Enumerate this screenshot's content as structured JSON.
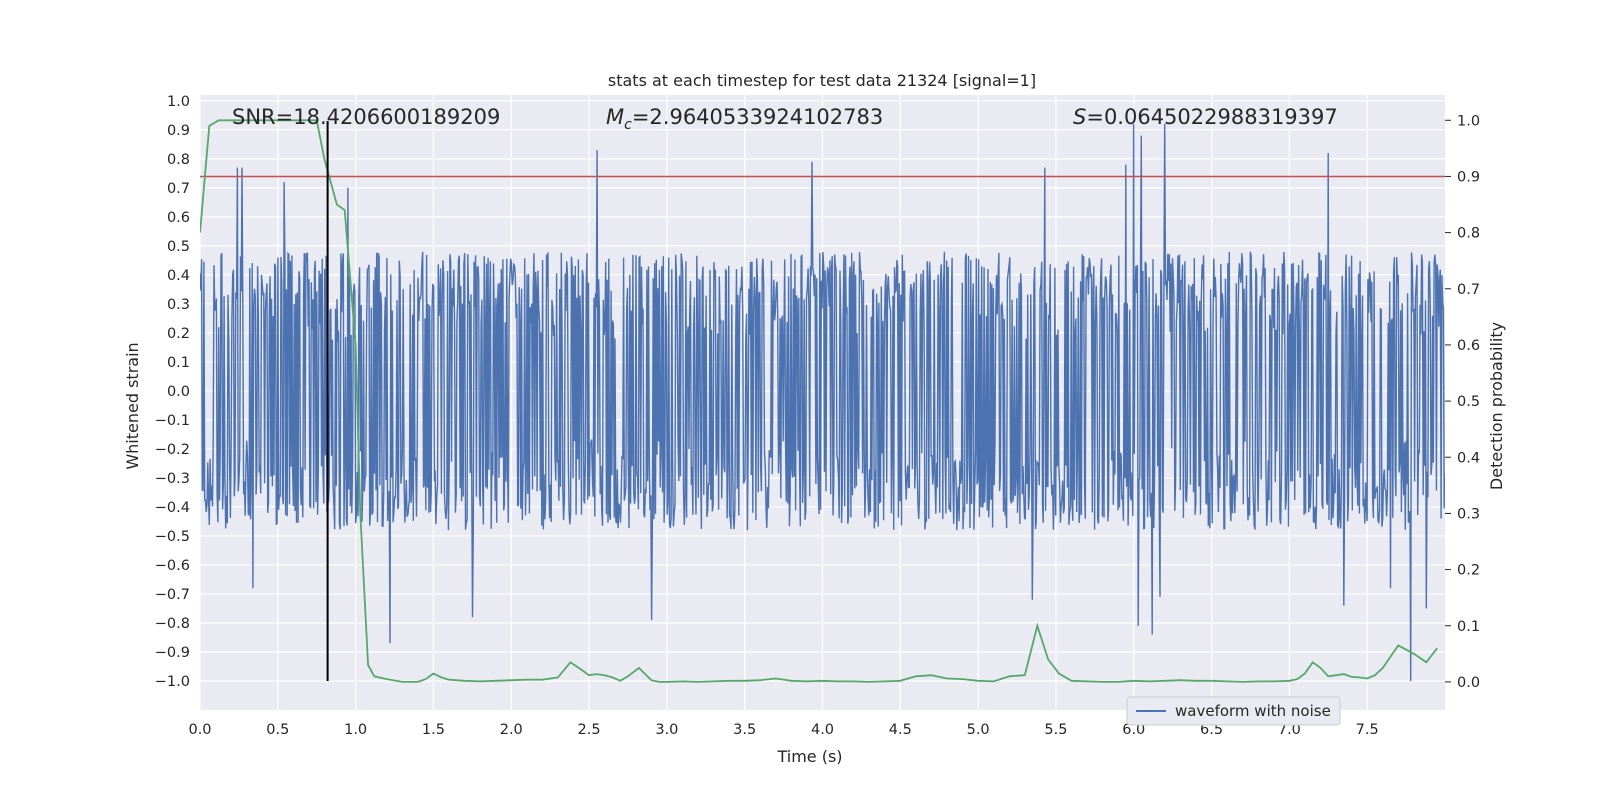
{
  "chart_data": {
    "type": "line",
    "title": "stats at each timestep for test data 21324 [signal=1]",
    "xlabel": "Time (s)",
    "ylabel": "Whitened strain",
    "y2label": "Detection probability",
    "xlim": [
      0.0,
      8.0
    ],
    "ylim": [
      -1.1,
      1.02
    ],
    "y2lim": [
      -0.05,
      1.045
    ],
    "x_ticks": [
      "0.0",
      "0.5",
      "1.0",
      "1.5",
      "2.0",
      "2.5",
      "3.0",
      "3.5",
      "4.0",
      "4.5",
      "5.0",
      "5.5",
      "6.0",
      "6.5",
      "7.0",
      "7.5"
    ],
    "y_ticks": [
      "1.0",
      "0.9",
      "0.8",
      "0.7",
      "0.6",
      "0.5",
      "0.4",
      "0.3",
      "0.2",
      "0.1",
      "0.0",
      "−0.1",
      "−0.2",
      "−0.3",
      "−0.4",
      "−0.5",
      "−0.6",
      "−0.7",
      "−0.8",
      "−0.9",
      "−1.0"
    ],
    "y2_ticks": [
      "1.0",
      "0.9",
      "0.8",
      "0.7",
      "0.6",
      "0.5",
      "0.4",
      "0.3",
      "0.2",
      "0.1",
      "0.0"
    ],
    "annotations": {
      "snr": "SNR=18.4206600189209",
      "mc_symbol": "M",
      "mc_sub": "c",
      "mc_value": "=2.9640533924102783",
      "s_symbol": "S",
      "s_value": "=0.0645022988319397"
    },
    "legend": {
      "label": "waveform with noise",
      "position": "lower right"
    },
    "threshold": {
      "value": 0.9,
      "axis": "right",
      "color": "#c44e52"
    },
    "merger_marker": {
      "x": 0.82,
      "y_from": -1.0,
      "y_to": 0.93,
      "color": "#000000"
    },
    "waveform": {
      "name": "waveform with noise",
      "color": "#4c72b0",
      "duration": 8.0,
      "n_samples": 1600,
      "base_amplitude": 0.3,
      "spikes_pos": [
        [
          0.24,
          0.77
        ],
        [
          0.27,
          0.77
        ],
        [
          0.54,
          0.72
        ],
        [
          0.95,
          0.7
        ],
        [
          2.55,
          0.83
        ],
        [
          3.93,
          0.79
        ],
        [
          5.43,
          0.77
        ],
        [
          5.95,
          0.78
        ],
        [
          6.0,
          0.92
        ],
        [
          6.05,
          0.88
        ],
        [
          6.2,
          0.92
        ],
        [
          7.25,
          0.82
        ]
      ],
      "spikes_neg": [
        [
          0.34,
          -0.68
        ],
        [
          1.22,
          -0.87
        ],
        [
          1.75,
          -0.78
        ],
        [
          2.9,
          -0.79
        ],
        [
          5.35,
          -0.72
        ],
        [
          6.03,
          -0.81
        ],
        [
          6.12,
          -0.84
        ],
        [
          6.17,
          -0.71
        ],
        [
          7.35,
          -0.74
        ],
        [
          7.65,
          -0.68
        ],
        [
          7.78,
          -1.0
        ],
        [
          7.88,
          -0.75
        ]
      ]
    },
    "probability": {
      "name": "detection probability",
      "color": "#55a868",
      "x": [
        0.0,
        0.06,
        0.12,
        0.2,
        0.3,
        0.4,
        0.5,
        0.6,
        0.7,
        0.75,
        0.8,
        0.88,
        0.93,
        1.0,
        1.03,
        1.08,
        1.12,
        1.2,
        1.3,
        1.4,
        1.45,
        1.5,
        1.55,
        1.6,
        1.7,
        1.8,
        1.9,
        2.0,
        2.1,
        2.2,
        2.3,
        2.38,
        2.45,
        2.5,
        2.55,
        2.6,
        2.65,
        2.7,
        2.75,
        2.82,
        2.9,
        2.95,
        3.0,
        3.1,
        3.2,
        3.3,
        3.4,
        3.5,
        3.6,
        3.7,
        3.8,
        3.9,
        4.0,
        4.1,
        4.2,
        4.3,
        4.4,
        4.5,
        4.6,
        4.7,
        4.8,
        4.9,
        5.0,
        5.1,
        5.2,
        5.3,
        5.38,
        5.45,
        5.52,
        5.6,
        5.7,
        5.8,
        5.9,
        6.0,
        6.1,
        6.2,
        6.3,
        6.4,
        6.5,
        6.6,
        6.7,
        6.8,
        6.9,
        7.0,
        7.05,
        7.1,
        7.15,
        7.2,
        7.25,
        7.3,
        7.35,
        7.4,
        7.45,
        7.5,
        7.55,
        7.6,
        7.7,
        7.8,
        7.88,
        7.95
      ],
      "y": [
        0.8,
        0.99,
        1.0,
        1.0,
        1.0,
        1.0,
        1.0,
        1.0,
        1.0,
        1.0,
        0.93,
        0.85,
        0.84,
        0.6,
        0.3,
        0.03,
        0.01,
        0.005,
        0.0,
        0.0,
        0.005,
        0.015,
        0.008,
        0.004,
        0.002,
        0.001,
        0.002,
        0.003,
        0.004,
        0.004,
        0.008,
        0.035,
        0.022,
        0.012,
        0.014,
        0.012,
        0.008,
        0.002,
        0.01,
        0.025,
        0.003,
        0.0,
        0.0,
        0.001,
        0.0,
        0.001,
        0.002,
        0.002,
        0.003,
        0.006,
        0.002,
        0.001,
        0.002,
        0.001,
        0.001,
        0.0,
        0.001,
        0.002,
        0.01,
        0.012,
        0.006,
        0.005,
        0.002,
        0.001,
        0.01,
        0.012,
        0.1,
        0.04,
        0.015,
        0.002,
        0.001,
        0.0,
        0.0,
        0.002,
        0.001,
        0.002,
        0.003,
        0.002,
        0.002,
        0.001,
        0.0,
        0.001,
        0.001,
        0.002,
        0.005,
        0.015,
        0.035,
        0.025,
        0.01,
        0.012,
        0.014,
        0.009,
        0.008,
        0.006,
        0.012,
        0.025,
        0.065,
        0.05,
        0.035,
        0.06
      ]
    },
    "colors": {
      "plot_bg": "#eaeaf2",
      "grid": "#ffffff",
      "text": "#262626"
    }
  }
}
